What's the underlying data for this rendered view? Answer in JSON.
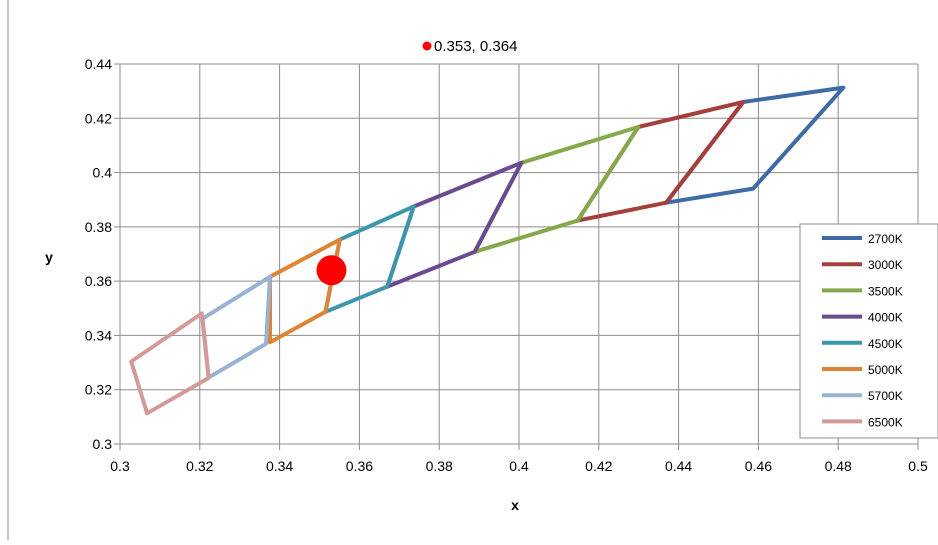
{
  "chart_data": {
    "type": "line",
    "title": "",
    "xlabel": "x",
    "ylabel": "y",
    "xlim": [
      0.3,
      0.5
    ],
    "ylim": [
      0.3,
      0.44
    ],
    "x_ticks": [
      "0.3",
      "0.32",
      "0.34",
      "0.36",
      "0.38",
      "0.4",
      "0.42",
      "0.44",
      "0.46",
      "0.48",
      "0.5"
    ],
    "y_ticks": [
      "0.3",
      "0.32",
      "0.34",
      "0.36",
      "0.38",
      "0.4",
      "0.42",
      "0.44"
    ],
    "grid": true,
    "legend_position": "right",
    "series": [
      {
        "name": "2700K",
        "color": "#3e6aa6",
        "points": [
          [
            0.4369,
            0.3889
          ],
          [
            0.4587,
            0.3941
          ],
          [
            0.4813,
            0.4313
          ],
          [
            0.4562,
            0.426
          ],
          [
            0.4369,
            0.3889
          ]
        ]
      },
      {
        "name": "3000K",
        "color": "#a53f3c",
        "points": [
          [
            0.4147,
            0.3823
          ],
          [
            0.4369,
            0.3889
          ],
          [
            0.4562,
            0.426
          ],
          [
            0.4299,
            0.4168
          ],
          [
            0.4147,
            0.3823
          ]
        ]
      },
      {
        "name": "3500K",
        "color": "#86a84b",
        "points": [
          [
            0.3889,
            0.3708
          ],
          [
            0.4147,
            0.3823
          ],
          [
            0.4299,
            0.4168
          ],
          [
            0.4006,
            0.4036
          ],
          [
            0.3889,
            0.3708
          ]
        ]
      },
      {
        "name": "4000K",
        "color": "#6a4b8f",
        "points": [
          [
            0.367,
            0.358
          ],
          [
            0.3889,
            0.3708
          ],
          [
            0.4006,
            0.4036
          ],
          [
            0.3736,
            0.3875
          ],
          [
            0.367,
            0.358
          ]
        ]
      },
      {
        "name": "4500K",
        "color": "#3c97ad",
        "points": [
          [
            0.3515,
            0.3487
          ],
          [
            0.367,
            0.358
          ],
          [
            0.3736,
            0.3875
          ],
          [
            0.3551,
            0.3753
          ],
          [
            0.3515,
            0.3487
          ]
        ]
      },
      {
        "name": "5000K",
        "color": "#dd8437",
        "points": [
          [
            0.3376,
            0.3375
          ],
          [
            0.3515,
            0.3487
          ],
          [
            0.3551,
            0.3753
          ],
          [
            0.3376,
            0.3616
          ],
          [
            0.3376,
            0.3375
          ]
        ]
      },
      {
        "name": "5700K",
        "color": "#98b2d4",
        "points": [
          [
            0.3222,
            0.3245
          ],
          [
            0.3366,
            0.3369
          ],
          [
            0.3376,
            0.3616
          ],
          [
            0.3207,
            0.3462
          ],
          [
            0.3222,
            0.3245
          ]
        ]
      },
      {
        "name": "6500K",
        "color": "#d49a98",
        "points": [
          [
            0.3068,
            0.3113
          ],
          [
            0.3222,
            0.3243
          ],
          [
            0.3205,
            0.3481
          ],
          [
            0.3028,
            0.3304
          ],
          [
            0.3068,
            0.3113
          ]
        ]
      }
    ],
    "marker": {
      "x": 0.353,
      "y": 0.364,
      "color": "#ff0000"
    },
    "annotation": {
      "text": "0.353, 0.364",
      "color": "#ff0000"
    }
  }
}
